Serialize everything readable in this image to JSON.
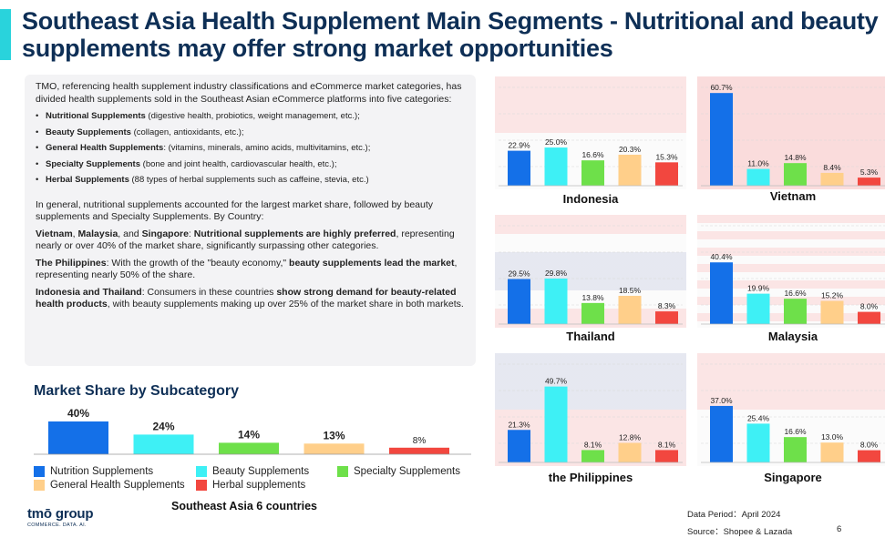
{
  "title": "Southeast Asia Health Supplement Main Segments - Nutritional and beauty supplements may offer strong market opportunities",
  "colors": {
    "nutrition": "#1470e8",
    "beauty": "#3ef0f5",
    "specialty": "#6ee04a",
    "general": "#ffcf8a",
    "herbal": "#f2473f",
    "accent": "#29d3dc",
    "title": "#0e2f56"
  },
  "intro": {
    "lead": "TMO, referencing health supplement industry classifications and eCommerce market categories, has divided health supplements sold in the Southeast Asian eCommerce platforms into five categories:",
    "items": [
      {
        "name": "Nutritional Supplements",
        "desc": " (digestive health, probiotics, weight management, etc.);"
      },
      {
        "name": "Beauty Supplements",
        "desc": " (collagen, antioxidants, etc.);"
      },
      {
        "name": "General Health Supplements",
        "desc": ": (vitamins, minerals, amino acids, multivitamins, etc.);"
      },
      {
        "name": "Specialty Supplements",
        "desc": " (bone and joint health, cardiovascular health, etc.);"
      },
      {
        "name": "Herbal Supplements",
        "desc": " (88 types of herbal supplements such as caffeine, stevia, etc.)"
      }
    ],
    "summary": "In general, nutritional supplements accounted for the largest market share, followed by beauty supplements and Specialty Supplements. By Country:",
    "p1": {
      "c1": "Vietnam",
      "s1": ", ",
      "c2": "Malaysia",
      "s2": ", and ",
      "c3": "Singapore",
      "s3": ": ",
      "b": "Nutritional supplements are highly preferred",
      "t": ", representing nearly or over 40% of the market share, significantly surpassing other categories."
    },
    "p2": {
      "c": "The Philippines",
      "t1": ": With the growth of the \"beauty economy,\" ",
      "b": "beauty supplements lead the market",
      "t2": ", representing nearly 50% of the share."
    },
    "p3": {
      "c": "Indonesia and Thailand",
      "t1": ": Consumers in these countries ",
      "b": "show strong demand for beauty-related health products",
      "t2": ", with beauty supplements making up over 25% of the market share in both markets."
    }
  },
  "market_share": {
    "title": "Market Share by Subcategory",
    "subtitle": "Southeast Asia 6 countries"
  },
  "legend": [
    {
      "label": "Nutrition Supplements",
      "color": "#1470e8"
    },
    {
      "label": "Beauty Supplements",
      "color": "#3ef0f5"
    },
    {
      "label": "Specialty Supplements",
      "color": "#6ee04a"
    },
    {
      "label": "General Health Supplements",
      "color": "#ffcf8a"
    },
    {
      "label": "Herbal supplements",
      "color": "#f2473f"
    }
  ],
  "chart_data": [
    {
      "type": "bar",
      "title": "Market Share by Subcategory",
      "subtitle": "Southeast Asia 6 countries",
      "categories": [
        "Nutrition Supplements",
        "Beauty Supplements",
        "Specialty Supplements",
        "General Health Supplements",
        "Herbal supplements"
      ],
      "values": [
        40,
        24,
        14,
        13,
        8
      ],
      "labels": [
        "40%",
        "24%",
        "14%",
        "13%",
        "8%"
      ],
      "unit": "%"
    },
    {
      "type": "bar",
      "title": "Indonesia",
      "categories": [
        "Nutrition Supplements",
        "Beauty Supplements",
        "Specialty Supplements",
        "General Health Supplements",
        "Herbal supplements"
      ],
      "values": [
        22.9,
        25.0,
        16.6,
        20.3,
        15.3
      ],
      "labels": [
        "22.9%",
        "25.0%",
        "16.6%",
        "20.3%",
        "15.3%"
      ]
    },
    {
      "type": "bar",
      "title": "Vietnam",
      "categories": [
        "Nutrition Supplements",
        "Beauty Supplements",
        "Specialty Supplements",
        "General Health Supplements",
        "Herbal supplements"
      ],
      "values": [
        60.7,
        11.0,
        14.8,
        8.4,
        5.3
      ],
      "labels": [
        "60.7%",
        "11.0%",
        "14.8%",
        "8.4%",
        "5.3%"
      ]
    },
    {
      "type": "bar",
      "title": "Thailand",
      "categories": [
        "Nutrition Supplements",
        "Beauty Supplements",
        "Specialty Supplements",
        "General Health Supplements",
        "Herbal supplements"
      ],
      "values": [
        29.5,
        29.8,
        13.8,
        18.5,
        8.3
      ],
      "labels": [
        "29.5%",
        "29.8%",
        "13.8%",
        "18.5%",
        "8.3%"
      ]
    },
    {
      "type": "bar",
      "title": "Malaysia",
      "categories": [
        "Nutrition Supplements",
        "Beauty Supplements",
        "Specialty Supplements",
        "General Health Supplements",
        "Herbal supplements"
      ],
      "values": [
        40.4,
        19.9,
        16.6,
        15.2,
        8.0
      ],
      "labels": [
        "40.4%",
        "19.9%",
        "16.6%",
        "15.2%",
        "8.0%"
      ]
    },
    {
      "type": "bar",
      "title": "the Philippines",
      "categories": [
        "Nutrition Supplements",
        "Beauty Supplements",
        "Specialty Supplements",
        "General Health Supplements",
        "Herbal supplements"
      ],
      "values": [
        21.3,
        49.7,
        8.1,
        12.8,
        8.1
      ],
      "labels": [
        "21.3%",
        "49.7%",
        "8.1%",
        "12.8%",
        "8.1%"
      ]
    },
    {
      "type": "bar",
      "title": "Singapore",
      "categories": [
        "Nutrition Supplements",
        "Beauty Supplements",
        "Specialty Supplements",
        "General Health Supplements",
        "Herbal supplements"
      ],
      "values": [
        37.0,
        25.4,
        16.6,
        13.0,
        8.0
      ],
      "labels": [
        "37.0%",
        "25.4%",
        "16.6%",
        "13.0%",
        "8.0%"
      ]
    }
  ],
  "footer": {
    "period": "Data Period：April 2024",
    "source": "Source：Shopee & Lazada",
    "page": "6"
  },
  "logo": {
    "name": "tmō group",
    "tagline": "COMMERCE. DATA. AI."
  }
}
